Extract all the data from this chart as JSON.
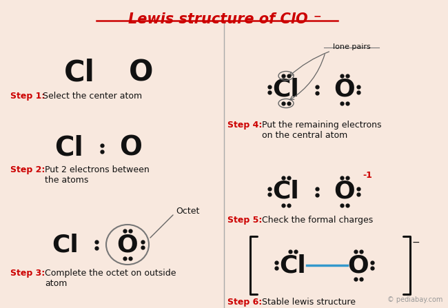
{
  "bg_color": "#f8e8de",
  "title_color": "#cc0000",
  "step_label_color": "#cc0000",
  "atom_color": "#111111",
  "divider_color": "#aaaaaa",
  "blue_bond": "#3399cc",
  "step1_label": "Step 1:",
  "step1_text": "Select the center atom",
  "step2_label": "Step 2:",
  "step2_text": "Put 2 electrons between\nthe atoms",
  "step3_label": "Step 3:",
  "step3_text": "Complete the octet on outside\natom",
  "step4_label": "Step 4:",
  "step4_text": "Put the remaining electrons\non the central atom",
  "step5_label": "Step 5:",
  "step5_text": "Check the formal charges",
  "step6_label": "Step 6:",
  "step6_text": "Stable lewis structure",
  "lone_pairs_label": "lone pairs",
  "octet_label": "Octet",
  "charge_label": "-1",
  "copyright": "© pediabay.com"
}
